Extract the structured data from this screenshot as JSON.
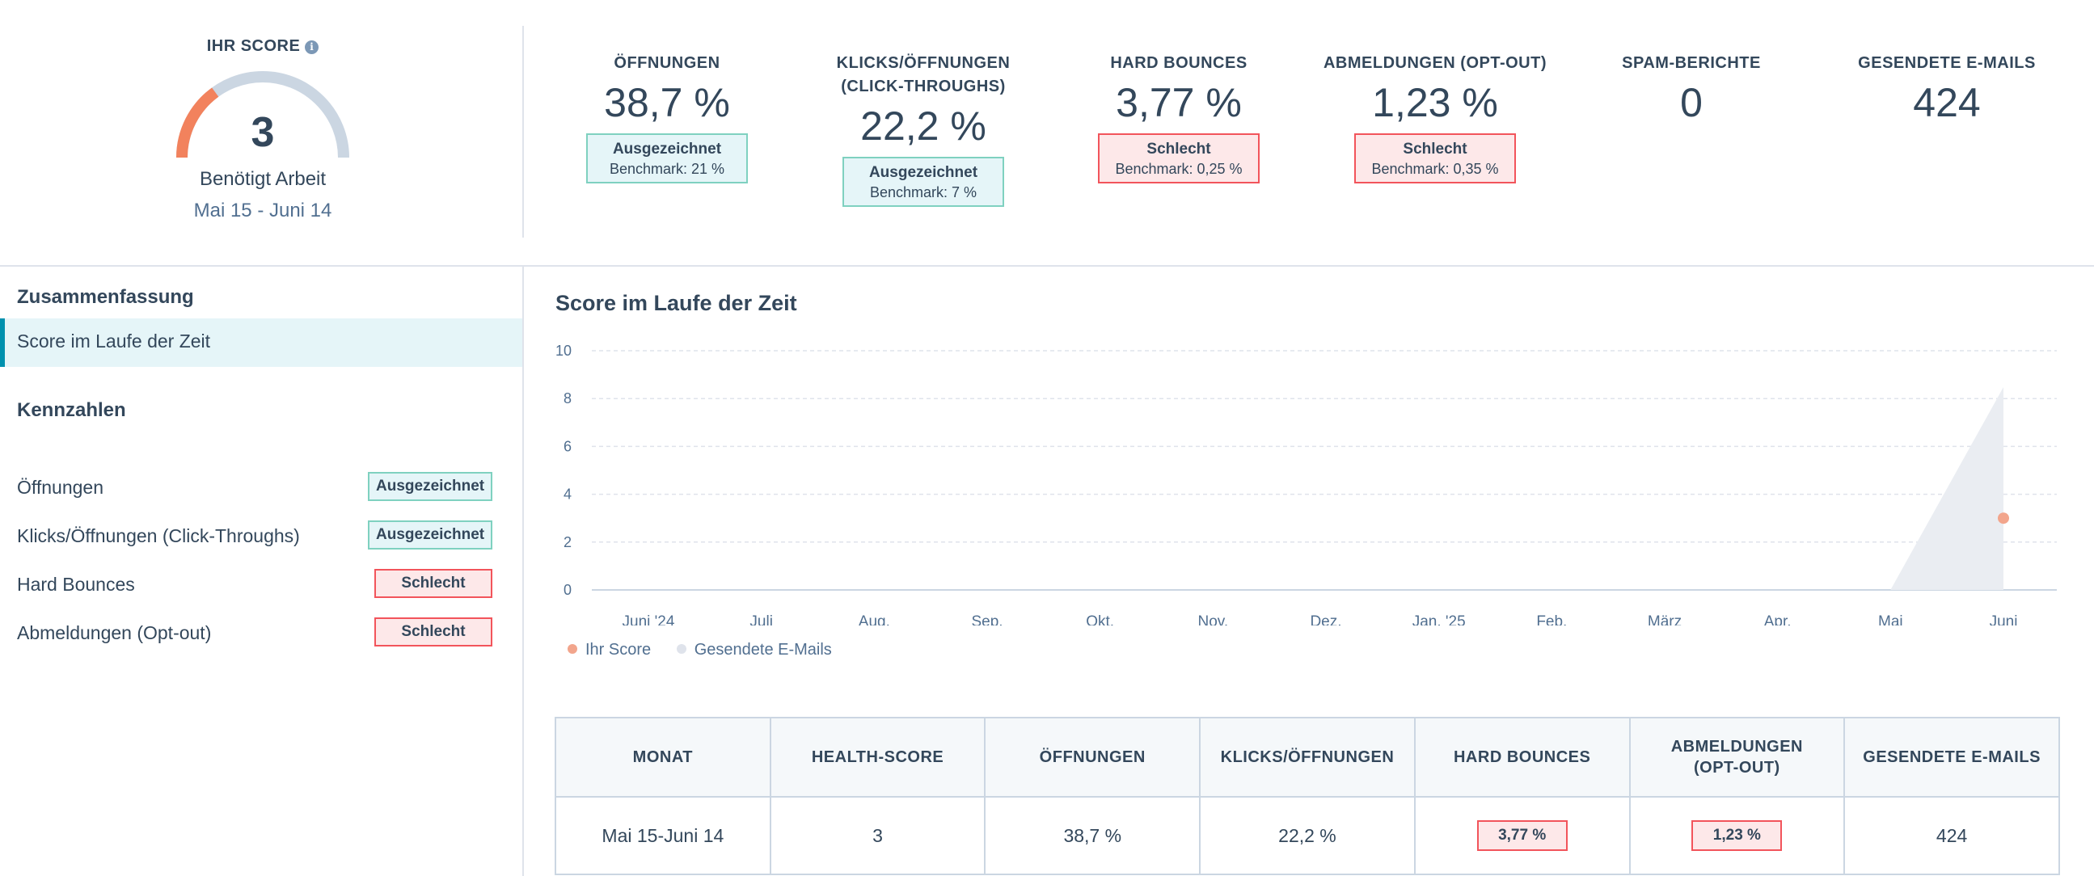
{
  "score": {
    "label": "IHR SCORE",
    "info_icon": "i",
    "value": "3",
    "gauge_fraction": 0.3,
    "status": "Benötigt Arbeit",
    "date_range": "Mai 15 - Juni 14",
    "colors": {
      "filled": "#f2825d",
      "track": "#cbd6e2"
    }
  },
  "metrics": [
    {
      "title": "ÖFFNUNGEN",
      "value": "38,7 %",
      "rating": "Ausgezeichnet",
      "benchmark": "Benchmark: 21 %",
      "status": "good"
    },
    {
      "title": "KLICKS/ÖFFNUNGEN",
      "title2": "(CLICK-THROUGHS)",
      "value": "22,2 %",
      "rating": "Ausgezeichnet",
      "benchmark": "Benchmark: 7 %",
      "status": "good"
    },
    {
      "title": "HARD BOUNCES",
      "value": "3,77 %",
      "rating": "Schlecht",
      "benchmark": "Benchmark: 0,25 %",
      "status": "bad"
    },
    {
      "title": "ABMELDUNGEN (OPT-OUT)",
      "value": "1,23 %",
      "rating": "Schlecht",
      "benchmark": "Benchmark: 0,35 %",
      "status": "bad"
    },
    {
      "title": "SPAM-BERICHTE",
      "value": "0"
    },
    {
      "title": "GESENDETE E-MAILS",
      "value": "424"
    }
  ],
  "nav": {
    "summary_heading": "Zusammenfassung",
    "selected_item": "Score im Laufe der Zeit",
    "kennzahlen_heading": "Kennzahlen",
    "items": [
      {
        "label": "Öffnungen",
        "badge": "Ausgezeichnet",
        "status": "good"
      },
      {
        "label": "Klicks/Öffnungen (Click-Throughs)",
        "badge": "Ausgezeichnet",
        "status": "good"
      },
      {
        "label": "Hard Bounces",
        "badge": "Schlecht",
        "status": "bad"
      },
      {
        "label": "Abmeldungen (Opt-out)",
        "badge": "Schlecht",
        "status": "bad"
      }
    ]
  },
  "chart_data": {
    "type": "line",
    "title": "Score im Laufe der Zeit",
    "categories": [
      "Juni '24",
      "Juli",
      "Aug.",
      "Sep.",
      "Okt.",
      "Nov.",
      "Dez.",
      "Jan. '25",
      "Feb.",
      "März",
      "Apr.",
      "Mai",
      "Juni"
    ],
    "ylim": [
      0,
      10
    ],
    "yticks": [
      "0",
      "2",
      "4",
      "6",
      "8",
      "10"
    ],
    "grid": true,
    "series": [
      {
        "name": "Ihr Score",
        "color": "#f2a58c",
        "values": [
          null,
          null,
          null,
          null,
          null,
          null,
          null,
          null,
          null,
          null,
          null,
          null,
          3
        ]
      },
      {
        "name": "Gesendete E-Mails",
        "color": "#dfe3eb",
        "values": [
          null,
          null,
          null,
          null,
          null,
          null,
          null,
          null,
          null,
          null,
          null,
          0,
          424
        ],
        "secondary_max": 500
      }
    ]
  },
  "table": {
    "headers": [
      "MONAT",
      "HEALTH-SCORE",
      "ÖFFNUNGEN",
      "KLICKS/ÖFFNUNGEN",
      "HARD BOUNCES",
      "ABMELDUNGEN (OPT-OUT)",
      "GESENDETE E-MAILS"
    ],
    "rows": [
      {
        "month": "Mai 15-Juni 14",
        "score": "3",
        "opens": "38,7 %",
        "clicks": "22,2 %",
        "bounces": "3,77 %",
        "optout": "1,23 %",
        "sent": "424"
      }
    ]
  }
}
